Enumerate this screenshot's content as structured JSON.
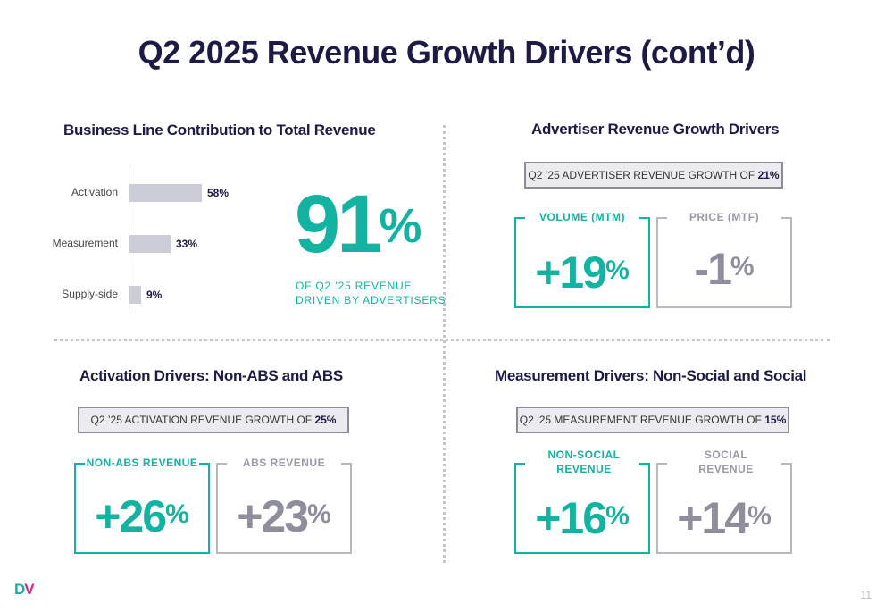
{
  "title": "Q2 2025 Revenue Growth Drivers (cont’d)",
  "business_line": {
    "title": "Business Line Contribution to Total Revenue",
    "big_value": "91",
    "big_unit": "%",
    "caption_line1": "OF Q2 ’25 REVENUE",
    "caption_line2": "DRIVEN BY ADVERTISERS"
  },
  "chart_data": {
    "type": "bar",
    "orientation": "horizontal",
    "categories": [
      "Activation",
      "Measurement",
      "Supply-side"
    ],
    "values": [
      58,
      33,
      9
    ],
    "value_labels": [
      "58%",
      "33%",
      "9%"
    ],
    "xlim": [
      0,
      100
    ],
    "color": "#cdcdd7"
  },
  "advertiser": {
    "title": "Advertiser Revenue Growth Drivers",
    "banner_text": "Q2 ’25 ADVERTISER REVENUE GROWTH OF ",
    "banner_value": "21%",
    "kpis": [
      {
        "label": "VOLUME (MTM)",
        "value": "+19",
        "unit": "%"
      },
      {
        "label": "PRICE (MTF)",
        "value": "-1",
        "unit": "%"
      }
    ]
  },
  "activation": {
    "title": "Activation Drivers: Non-ABS and ABS",
    "banner_text": "Q2 ’25 ACTIVATION REVENUE GROWTH OF ",
    "banner_value": "25%",
    "kpis": [
      {
        "label": "NON-ABS REVENUE",
        "value": "+26",
        "unit": "%"
      },
      {
        "label": "ABS REVENUE",
        "value": "+23",
        "unit": "%"
      }
    ]
  },
  "measurement": {
    "title": "Measurement Drivers: Non-Social and Social",
    "banner_text": "Q2 ’25 MEASUREMENT REVENUE GROWTH OF ",
    "banner_value": "15%",
    "kpis": [
      {
        "label_line1": "NON-SOCIAL",
        "label_line2": "REVENUE",
        "value": "+16",
        "unit": "%"
      },
      {
        "label_line1": "SOCIAL",
        "label_line2": "REVENUE",
        "value": "+14",
        "unit": "%"
      }
    ]
  },
  "colors": {
    "accent": "#14b2a0",
    "neutral": "#8f8e9c",
    "navy": "#1c1b44",
    "logo_v": "#d7288c"
  },
  "footer": {
    "logo_d": "D",
    "logo_v": "V",
    "page_number": "11"
  }
}
